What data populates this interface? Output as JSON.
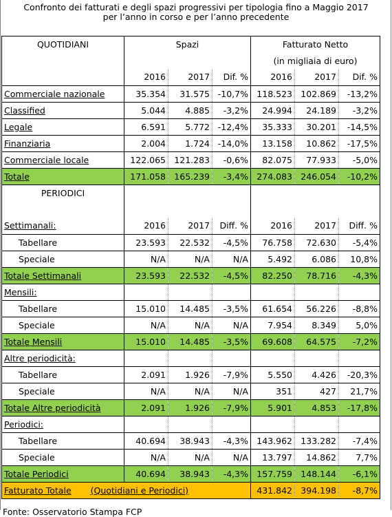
{
  "title": {
    "line1": "Confronto dei fatturati e degli spazi progressivi per tipologia fino a Maggio 2017",
    "line2": "per l’anno in corso e per l’anno precedente"
  },
  "header": {
    "quotidiani": "QUOTIDIANI",
    "spazi": "Spazi",
    "fatturato": "Fatturato Netto",
    "fatturato_note": "(in migliaia di euro)",
    "y2016": "2016",
    "y2017": "2017",
    "dif": "Dif. %"
  },
  "quotidiani_rows": [
    {
      "label": "Commerciale nazionale",
      "s16": "35.354",
      "s17": "31.575",
      "sd": "-10,7%",
      "f16": "118.523",
      "f17": "102.869",
      "fd": "-13,2%"
    },
    {
      "label": "Classified",
      "s16": "5.044",
      "s17": "4.885",
      "sd": "-3,2%",
      "f16": "24.994",
      "f17": "24.189",
      "fd": "-3,2%"
    },
    {
      "label": "Legale",
      "s16": "6.591",
      "s17": "5.772",
      "sd": "-12,4%",
      "f16": "35.333",
      "f17": "30.201",
      "fd": "-14,5%"
    },
    {
      "label": "Finanziaria",
      "s16": "2.004",
      "s17": "1.724",
      "sd": "-14,0%",
      "f16": "13.158",
      "f17": "10.862",
      "fd": "-17,5%"
    },
    {
      "label": "Commerciale locale",
      "s16": "122.065",
      "s17": "121.283",
      "sd": "-0,6%",
      "f16": "82.075",
      "f17": "77.933",
      "fd": "-5,0%"
    }
  ],
  "totale": {
    "label": "Totale",
    "s16": "171.058",
    "s17": "165.239",
    "sd": "-3,4%",
    "f16": "274.083",
    "f17": "246.054",
    "fd": "-10,2%"
  },
  "periodici_label": "PERIODICI",
  "settimanali": {
    "label": "Settimanali:",
    "y2016": "2016",
    "y2017": "2017",
    "diff": "Diff. %",
    "rows": [
      {
        "label": "Tabellare",
        "s16": "23.593",
        "s17": "22.532",
        "sd": "-4,5%",
        "f16": "76.758",
        "f17": "72.630",
        "fd": "-5,4%"
      },
      {
        "label": "Speciale",
        "s16": "N/A",
        "s17": "N/A",
        "sd": "N/A",
        "f16": "5.492",
        "f17": "6.086",
        "fd": "10,8%"
      }
    ],
    "total": {
      "label": "Totale Settimanali",
      "s16": "23.593",
      "s17": "22.532",
      "sd": "-4,5%",
      "f16": "82.250",
      "f17": "78.716",
      "fd": "-4,3%"
    }
  },
  "mensili": {
    "label": "Mensili:",
    "rows": [
      {
        "label": "Tabellare",
        "s16": "15.010",
        "s17": "14.485",
        "sd": "-3,5%",
        "f16": "61.654",
        "f17": "56.226",
        "fd": "-8,8%"
      },
      {
        "label": "Speciale",
        "s16": "N/A",
        "s17": "N/A",
        "sd": "N/A",
        "f16": "7.954",
        "f17": "8.349",
        "fd": "5,0%"
      }
    ],
    "total": {
      "label": "Totale Mensili",
      "s16": "15.010",
      "s17": "14.485",
      "sd": "-3,5%",
      "f16": "69.608",
      "f17": "64.575",
      "fd": "-7,2%"
    }
  },
  "altre": {
    "label": "Altre periodicità:",
    "rows": [
      {
        "label": "Tabellare",
        "s16": "2.091",
        "s17": "1.926",
        "sd": "-7,9%",
        "f16": "5.550",
        "f17": "4.426",
        "fd": "-20,3%"
      },
      {
        "label": "Speciale",
        "s16": "N/A",
        "s17": "N/A",
        "sd": "N/A",
        "f16": "351",
        "f17": "427",
        "fd": "21,7%"
      }
    ],
    "total": {
      "label": "Totale Altre periodicità",
      "s16": "2.091",
      "s17": "1.926",
      "sd": "-7,9%",
      "f16": "5.901",
      "f17": "4.853",
      "fd": "-17,8%"
    }
  },
  "periodici": {
    "label": "Periodici:",
    "rows": [
      {
        "label": "Tabellare",
        "s16": "40.694",
        "s17": "38.943",
        "sd": "-4,3%",
        "f16": "143.962",
        "f17": "133.282",
        "fd": "-7,4%"
      },
      {
        "label": "Speciale",
        "s16": "N/A",
        "s17": "N/A",
        "sd": "N/A",
        "f16": "13.797",
        "f17": "14.862",
        "fd": "7,7%"
      }
    ],
    "total": {
      "label": "Totale Periodici",
      "s16": "40.694",
      "s17": "38.943",
      "sd": "-4,3%",
      "f16": "157.759",
      "f17": "148.144",
      "fd": "-6,1%"
    }
  },
  "fatturato_totale": {
    "label": "Fatturato Totale",
    "note": "(Quotidiani e Periodici)",
    "f16": "431.842",
    "f17": "394.198",
    "fd": "-8,7%"
  },
  "source": "Fonte: Osservatorio Stampa FCP",
  "colors": {
    "total_row": "#92d050",
    "grand_total_row": "#ffc000"
  }
}
